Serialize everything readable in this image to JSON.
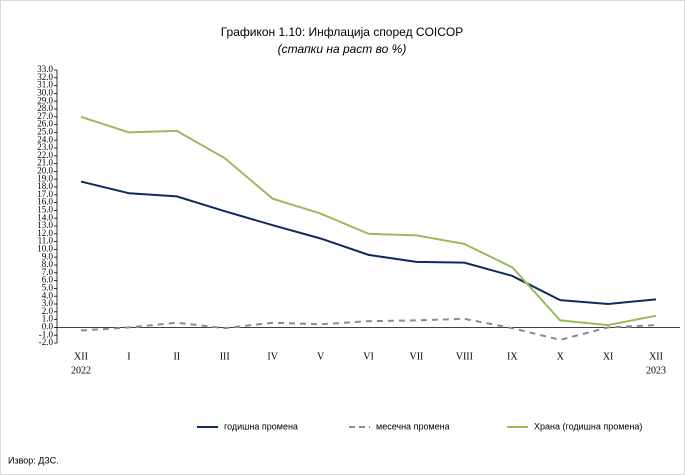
{
  "chart_data": {
    "type": "line",
    "title": "Графикон 1.10: Инфлација според COICOP",
    "subtitle": "(стапки на раст во  %)",
    "source": "Извор: ДЗС.",
    "categories": [
      "XII",
      "I",
      "II",
      "III",
      "IV",
      "V",
      "VI",
      "VII",
      "VIII",
      "IX",
      "X",
      "XI",
      "XII"
    ],
    "category_years": [
      "2022",
      null,
      null,
      null,
      null,
      null,
      null,
      null,
      null,
      null,
      null,
      null,
      "2023"
    ],
    "ylim": [
      -2,
      33
    ],
    "yticks": [
      {
        "value": -2,
        "label": "-2.0"
      },
      {
        "value": -1,
        "label": "-1.0"
      },
      {
        "value": 0,
        "label": "0.0"
      },
      {
        "value": 1,
        "label": "1.0"
      },
      {
        "value": 2,
        "label": "2.0"
      },
      {
        "value": 3,
        "label": "3.0"
      },
      {
        "value": 4,
        "label": "4.0"
      },
      {
        "value": 5,
        "label": "5.0"
      },
      {
        "value": 6,
        "label": "6.0"
      },
      {
        "value": 7,
        "label": "7.0"
      },
      {
        "value": 8,
        "label": "8.0"
      },
      {
        "value": 9,
        "label": "9.0"
      },
      {
        "value": 10,
        "label": "10.0"
      },
      {
        "value": 11,
        "label": "11.0"
      },
      {
        "value": 12,
        "label": "12.0"
      },
      {
        "value": 13,
        "label": "13.0"
      },
      {
        "value": 14,
        "label": "14.0"
      },
      {
        "value": 15,
        "label": "15.0"
      },
      {
        "value": 16,
        "label": "16.0"
      },
      {
        "value": 17,
        "label": "17.0"
      },
      {
        "value": 18,
        "label": "18.0"
      },
      {
        "value": 19,
        "label": "19.0"
      },
      {
        "value": 20,
        "label": "20.0"
      },
      {
        "value": 21,
        "label": "21.0"
      },
      {
        "value": 22,
        "label": "22.0"
      },
      {
        "value": 23,
        "label": "23.0"
      },
      {
        "value": 24,
        "label": "24.0"
      },
      {
        "value": 25,
        "label": "25.0"
      },
      {
        "value": 26,
        "label": "26.0"
      },
      {
        "value": 27,
        "label": "27.0"
      },
      {
        "value": 28,
        "label": "28.0"
      },
      {
        "value": 29,
        "label": "29.0"
      },
      {
        "value": 30,
        "label": "30.0"
      },
      {
        "value": 31,
        "label": "31.0"
      },
      {
        "value": 32,
        "label": "32.0"
      },
      {
        "value": 33,
        "label": "33.0"
      }
    ],
    "grid": false,
    "legend": "bottom",
    "series": [
      {
        "name": "годишна промена",
        "color": "#0d2a5e",
        "dash": false,
        "values": [
          18.7,
          17.2,
          16.8,
          14.9,
          13.1,
          11.4,
          9.3,
          8.4,
          8.3,
          6.6,
          3.5,
          3.0,
          3.6
        ]
      },
      {
        "name": "месечна промена",
        "color": "#8c8c8c",
        "dash": true,
        "values": [
          -0.4,
          0.0,
          0.6,
          -0.1,
          0.6,
          0.4,
          0.8,
          0.9,
          1.1,
          -0.1,
          -1.6,
          0.0,
          0.3
        ]
      },
      {
        "name": "Храна  (годишна промена)",
        "color": "#9bbb59",
        "dash": false,
        "values": [
          27.0,
          25.0,
          25.2,
          21.7,
          16.5,
          14.6,
          12.0,
          11.8,
          10.7,
          7.7,
          0.9,
          0.3,
          1.5
        ]
      }
    ]
  }
}
